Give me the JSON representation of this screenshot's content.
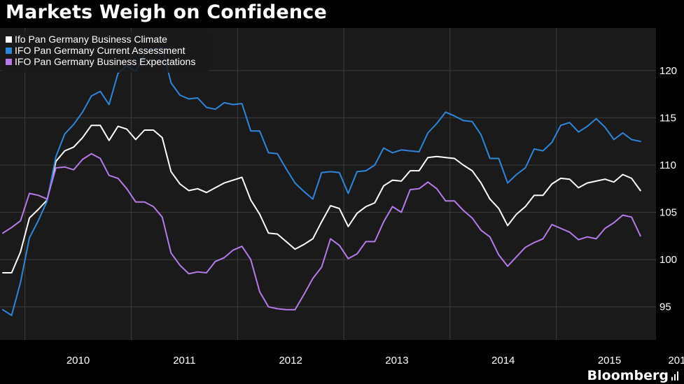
{
  "title": "Markets Weigh on Confidence",
  "brand": "Bloomberg",
  "colors": {
    "background": "#000000",
    "plot_background": "#1a1a1a",
    "grid": "#3c3c3c",
    "text": "#ffffff"
  },
  "chart_data": {
    "type": "line",
    "x_start": "2009-10",
    "x_step": "month",
    "ylim": [
      91.5,
      124.5
    ],
    "yticks": [
      95,
      100,
      105,
      110,
      115,
      120
    ],
    "x_tick_labels": [
      "2010",
      "2011",
      "2012",
      "2013",
      "2014",
      "2015",
      "201"
    ],
    "grid": true,
    "legend_position": "top-left",
    "series": [
      {
        "name": "Ifo Pan Germany Business Climate",
        "color": "#ffffff",
        "values": [
          98.6,
          98.6,
          100.8,
          104.4,
          105.3,
          106.3,
          110.4,
          111.5,
          111.9,
          112.9,
          114.2,
          114.2,
          112.6,
          114.1,
          113.8,
          112.7,
          113.7,
          113.7,
          112.9,
          109.3,
          108.0,
          107.3,
          107.5,
          107.1,
          107.6,
          108.1,
          108.4,
          108.7,
          106.3,
          104.8,
          102.8,
          102.7,
          101.9,
          101.1,
          101.6,
          102.2,
          104.0,
          105.7,
          105.4,
          103.5,
          104.9,
          105.6,
          106.0,
          107.8,
          108.4,
          108.3,
          109.4,
          109.4,
          110.8,
          110.9,
          110.8,
          110.7,
          110.0,
          109.4,
          108.1,
          106.4,
          105.4,
          103.6,
          104.8,
          105.6,
          106.8,
          106.8,
          108.0,
          108.6,
          108.5,
          107.6,
          108.1,
          108.3,
          108.5,
          108.2,
          109.0,
          108.6,
          107.3
        ]
      },
      {
        "name": "IFO Pan Germany Current Assessment",
        "color": "#2f86d8",
        "values": [
          94.7,
          94.1,
          97.6,
          102.3,
          104.1,
          106.2,
          110.9,
          113.3,
          114.3,
          115.6,
          117.3,
          117.8,
          116.4,
          119.7,
          120.5,
          119.9,
          121.7,
          122.2,
          122.4,
          118.7,
          117.4,
          117.0,
          117.1,
          116.1,
          115.9,
          116.6,
          116.4,
          116.5,
          113.6,
          113.6,
          111.3,
          111.2,
          109.6,
          108.1,
          107.2,
          106.4,
          109.2,
          109.3,
          109.2,
          107.0,
          109.3,
          109.4,
          110.0,
          111.8,
          111.3,
          111.6,
          111.5,
          111.4,
          113.4,
          114.4,
          115.6,
          115.2,
          114.7,
          114.6,
          113.2,
          110.7,
          110.7,
          108.1,
          109.0,
          109.7,
          111.7,
          111.5,
          112.4,
          114.2,
          114.5,
          113.5,
          114.1,
          114.9,
          114.0,
          112.7,
          113.4,
          112.7,
          112.5
        ]
      },
      {
        "name": "IFO Pan Germany Business Expectations",
        "color": "#b57ae8",
        "values": [
          102.8,
          103.4,
          104.1,
          107.0,
          106.8,
          106.4,
          109.7,
          109.8,
          109.5,
          110.6,
          111.2,
          110.7,
          108.9,
          108.6,
          107.5,
          106.1,
          106.1,
          105.6,
          104.5,
          100.7,
          99.4,
          98.5,
          98.7,
          98.6,
          99.8,
          100.2,
          101.0,
          101.4,
          100.0,
          96.6,
          95.0,
          94.8,
          94.7,
          94.7,
          96.3,
          98.0,
          99.2,
          102.2,
          101.5,
          100.1,
          100.6,
          101.9,
          101.9,
          104.0,
          105.6,
          105.0,
          107.4,
          107.5,
          108.2,
          107.5,
          106.2,
          106.2,
          105.2,
          104.4,
          103.1,
          102.4,
          100.5,
          99.3,
          100.3,
          101.3,
          101.8,
          102.2,
          103.7,
          103.3,
          102.9,
          102.1,
          102.4,
          102.2,
          103.3,
          103.9,
          104.7,
          104.5,
          102.5
        ]
      }
    ]
  }
}
